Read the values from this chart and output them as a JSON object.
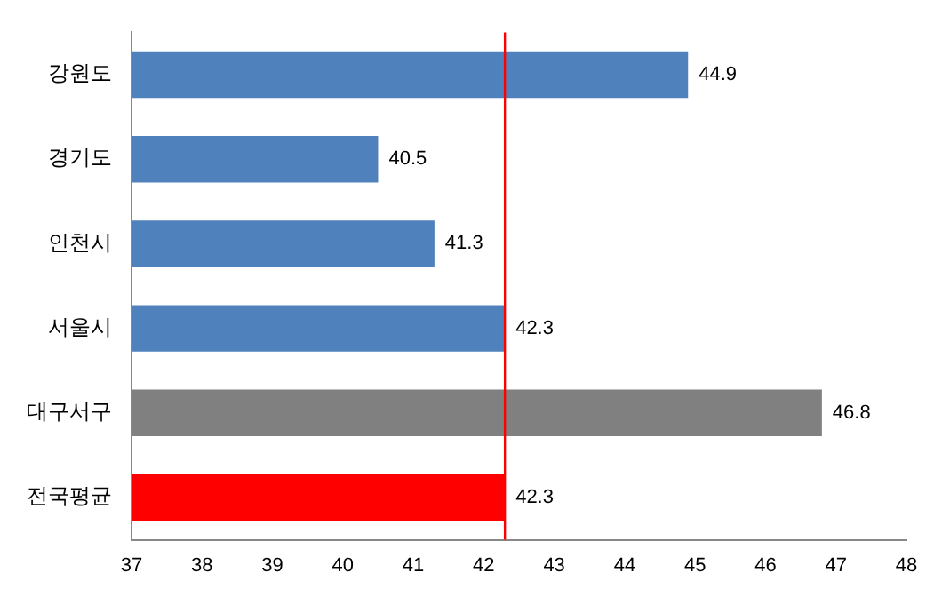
{
  "chart_data": {
    "type": "bar",
    "orientation": "horizontal",
    "categories": [
      "강원도",
      "경기도",
      "인천시",
      "서울시",
      "대구서구",
      "전국평균"
    ],
    "values": [
      44.9,
      40.5,
      41.3,
      42.3,
      46.8,
      42.3
    ],
    "colors": [
      "#4f81bd",
      "#4f81bd",
      "#4f81bd",
      "#4f81bd",
      "#808080",
      "#ff0000"
    ],
    "xlim": [
      37,
      48
    ],
    "xticks": [
      37,
      38,
      39,
      40,
      41,
      42,
      43,
      44,
      45,
      46,
      47,
      48
    ],
    "ref_lines": [
      {
        "axis": "x",
        "value": 42.3,
        "color": "#ff0000"
      }
    ],
    "data_labels": true,
    "grid": false,
    "legend": false
  }
}
